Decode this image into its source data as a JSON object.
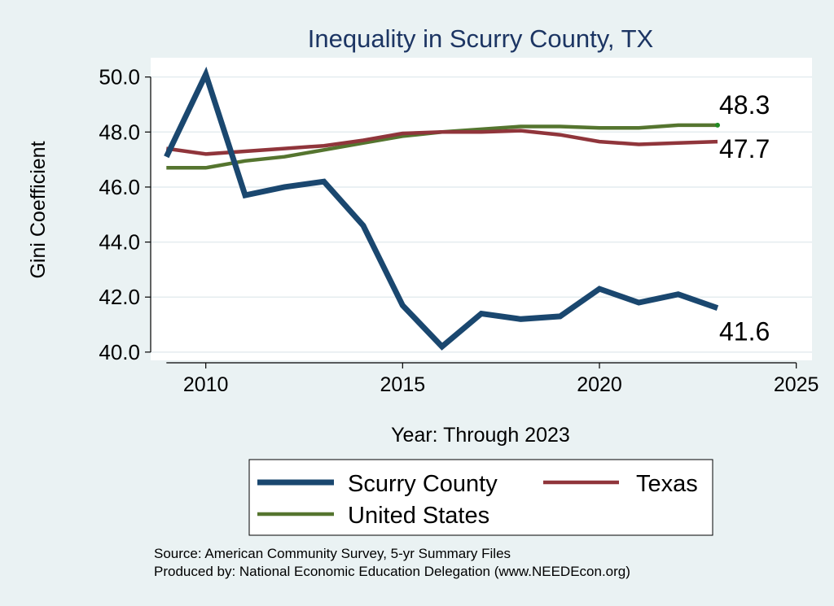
{
  "chart_data": {
    "type": "line",
    "title": "Inequality in Scurry County, TX",
    "xlabel": "Year: Through 2023",
    "ylabel": "Gini Coefficient",
    "xlim": [
      2008.6,
      2025.4
    ],
    "ylim": [
      39.7,
      50.7
    ],
    "xticks": [
      2010,
      2015,
      2020,
      2025
    ],
    "yticks": [
      40.0,
      42.0,
      44.0,
      46.0,
      48.0,
      50.0
    ],
    "ytick_labels": [
      "40.0",
      "42.0",
      "44.0",
      "46.0",
      "48.0",
      "50.0"
    ],
    "grid": true,
    "x": [
      2009,
      2010,
      2011,
      2012,
      2013,
      2014,
      2015,
      2016,
      2017,
      2018,
      2019,
      2020,
      2021,
      2022,
      2023
    ],
    "series": [
      {
        "name": "Scurry County",
        "color": "#1a476f",
        "values": [
          47.1,
          50.1,
          45.7,
          46.0,
          46.2,
          44.6,
          41.7,
          40.2,
          41.4,
          41.2,
          41.3,
          42.3,
          41.8,
          42.1,
          41.6
        ],
        "end_label": "41.6"
      },
      {
        "name": "Texas",
        "color": "#90353b",
        "values": [
          47.4,
          47.2,
          47.3,
          47.4,
          47.5,
          47.7,
          47.95,
          48.0,
          48.0,
          48.05,
          47.9,
          47.65,
          47.55,
          47.6,
          47.65
        ],
        "end_label": "47.7"
      },
      {
        "name": "United States",
        "color": "#55752f",
        "values": [
          46.7,
          46.7,
          46.95,
          47.1,
          47.35,
          47.6,
          47.85,
          48.0,
          48.1,
          48.2,
          48.2,
          48.15,
          48.15,
          48.25,
          48.25
        ],
        "end_label": "48.3"
      }
    ],
    "legend": {
      "position": "bottom",
      "entries": [
        "Scurry County",
        "Texas",
        "United States"
      ]
    },
    "notes": [
      "Source: American Community Survey, 5-yr Summary Files",
      "Produced by: National Economic Education Delegation (www.NEEDEcon.org)"
    ]
  }
}
